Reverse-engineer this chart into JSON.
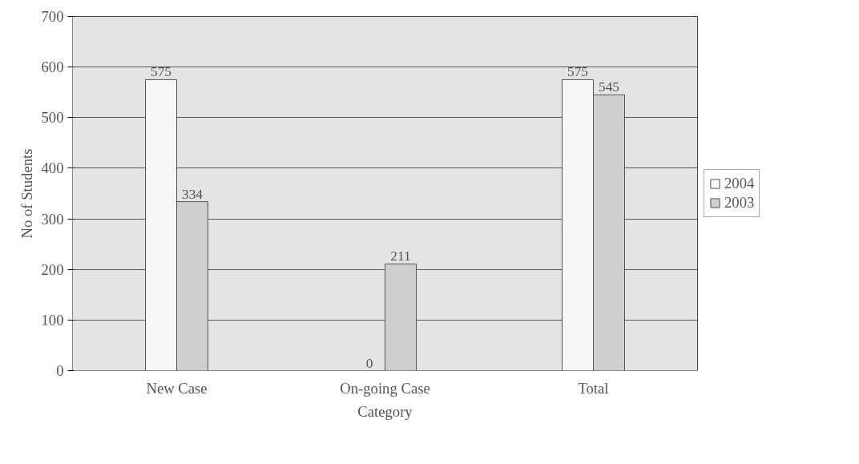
{
  "chart_data": {
    "type": "bar",
    "xlabel": "Category",
    "ylabel": "No of Students",
    "categories": [
      "New Case",
      "On-going Case",
      "Total"
    ],
    "series": [
      {
        "name": "2004",
        "color": "#f8f8f8",
        "values": [
          575,
          0,
          575
        ]
      },
      {
        "name": "2003",
        "color": "#cfcfcf",
        "values": [
          334,
          211,
          545
        ]
      }
    ],
    "ylim": [
      0,
      700
    ],
    "yticks": [
      0,
      100,
      200,
      300,
      400,
      500,
      600,
      700
    ],
    "grid": "y",
    "legend": "right",
    "data_labels": true
  }
}
